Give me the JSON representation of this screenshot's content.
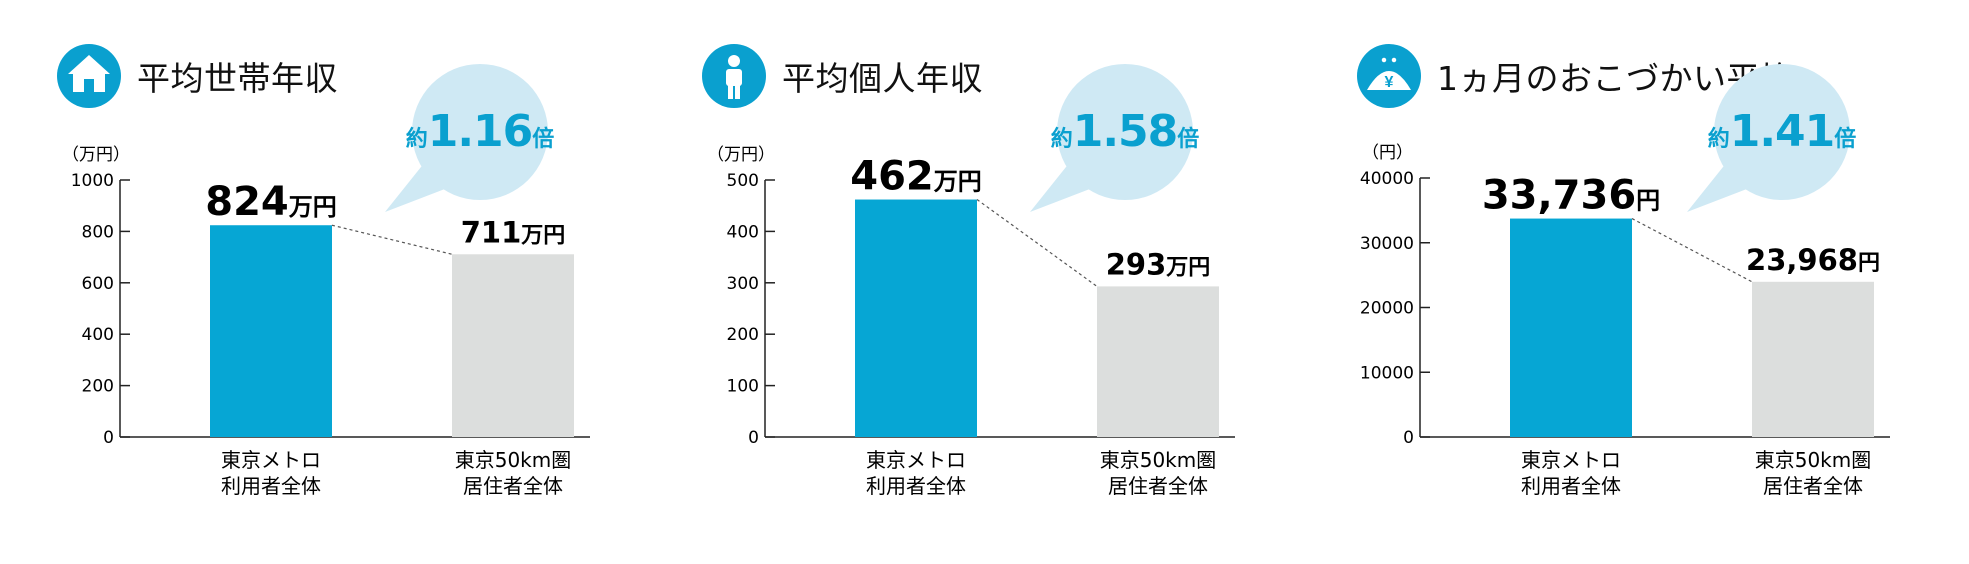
{
  "colors": {
    "metro_bar": "#06a6d4",
    "area_bar": "#dcdedd",
    "bubble": "#cfe9f4",
    "accent_text": "#0aa0cf",
    "icon_bg": "#0aa0cf"
  },
  "chart_data": [
    {
      "type": "bar",
      "title": "平均世帯年収",
      "icon": "house-icon",
      "unit_label": "（万円）",
      "ylim": [
        0,
        1000
      ],
      "yticks": [
        "0",
        "200",
        "400",
        "600",
        "800",
        "1000"
      ],
      "categories": [
        "東京メトロ\n利用者全体",
        "東京50km圏\n居住者全体"
      ],
      "category_lines": [
        [
          "東京メトロ",
          "利用者全体"
        ],
        [
          "東京50km圏",
          "居住者全体"
        ]
      ],
      "values": [
        824,
        711
      ],
      "value_labels": [
        {
          "num": "824",
          "unit": "万円"
        },
        {
          "num": "711",
          "unit": "万円"
        }
      ],
      "ratio": {
        "prefix": "約",
        "value": "1.16",
        "suffix": "倍"
      },
      "grid": false
    },
    {
      "type": "bar",
      "title": "平均個人年収",
      "icon": "person-icon",
      "unit_label": "（万円）",
      "ylim": [
        0,
        500
      ],
      "yticks": [
        "0",
        "100",
        "200",
        "300",
        "400",
        "500"
      ],
      "categories": [
        "東京メトロ\n利用者全体",
        "東京50km圏\n居住者全体"
      ],
      "category_lines": [
        [
          "東京メトロ",
          "利用者全体"
        ],
        [
          "東京50km圏",
          "居住者全体"
        ]
      ],
      "values": [
        462,
        293
      ],
      "value_labels": [
        {
          "num": "462",
          "unit": "万円"
        },
        {
          "num": "293",
          "unit": "万円"
        }
      ],
      "ratio": {
        "prefix": "約",
        "value": "1.58",
        "suffix": "倍"
      },
      "grid": false
    },
    {
      "type": "bar",
      "title": "1ヵ月のおこづかい平均",
      "icon": "yen-purse-icon",
      "unit_label": "（円）",
      "ylim": [
        0,
        40000
      ],
      "yticks": [
        "0",
        "10000",
        "20000",
        "30000",
        "40000"
      ],
      "categories": [
        "東京メトロ\n利用者全体",
        "東京50km圏\n居住者全体"
      ],
      "category_lines": [
        [
          "東京メトロ",
          "利用者全体"
        ],
        [
          "東京50km圏",
          "居住者全体"
        ]
      ],
      "values": [
        33736,
        23968
      ],
      "value_labels": [
        {
          "num": "33,736",
          "unit": "円"
        },
        {
          "num": "23,968",
          "unit": "円"
        }
      ],
      "ratio": {
        "prefix": "約",
        "value": "1.41",
        "suffix": "倍"
      },
      "grid": false
    }
  ]
}
